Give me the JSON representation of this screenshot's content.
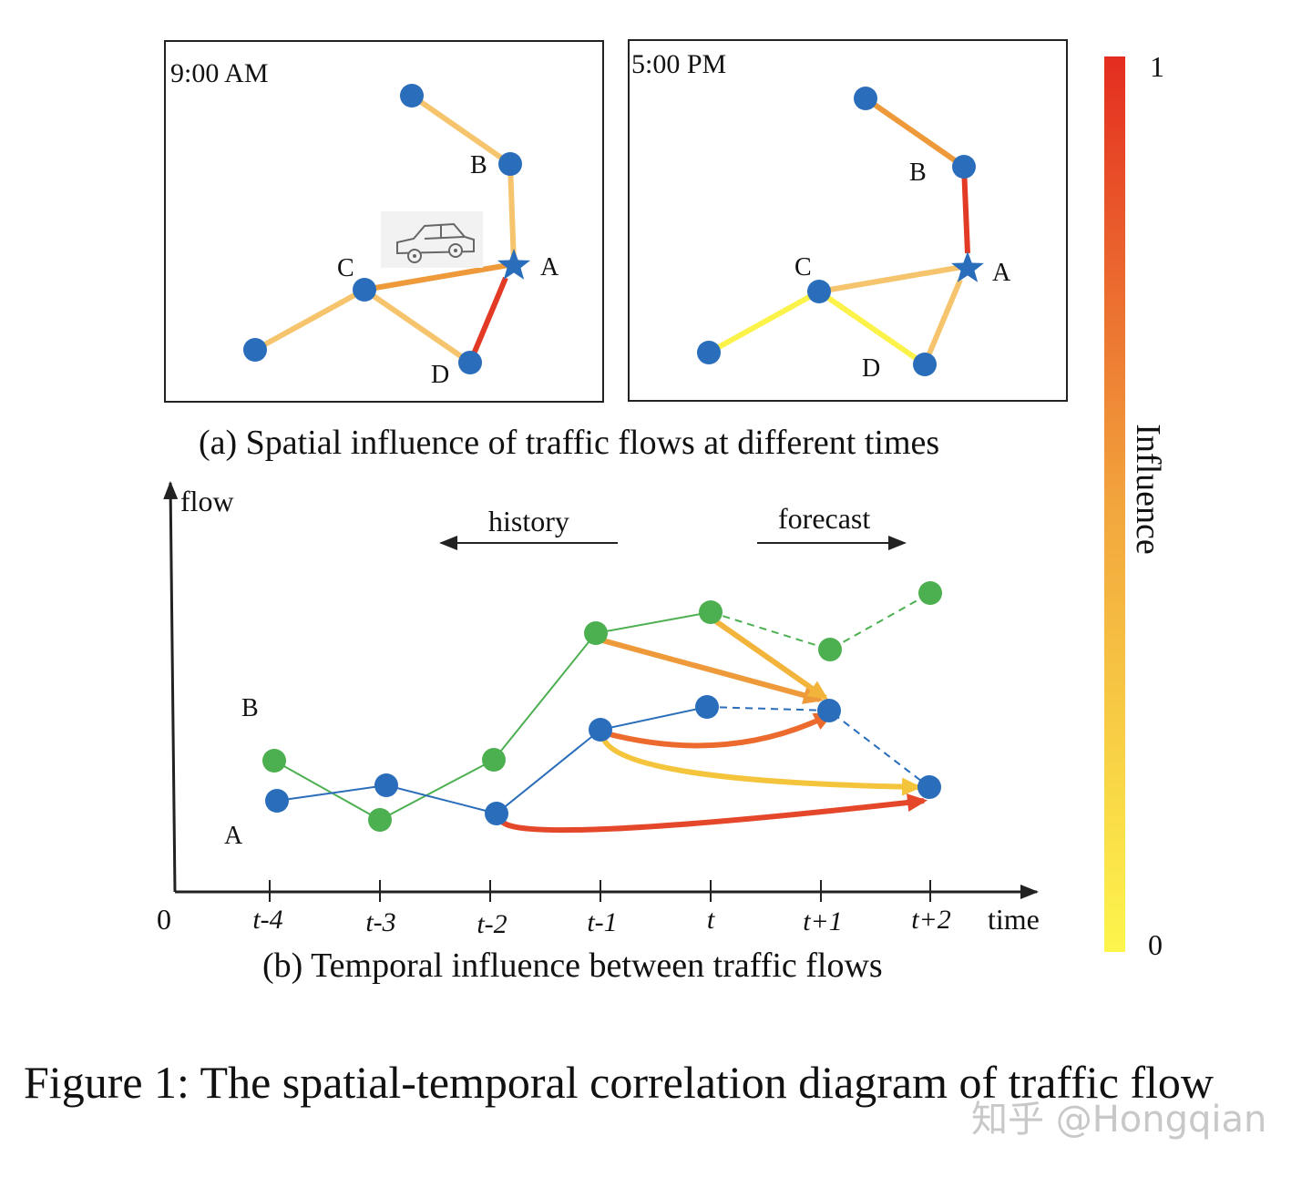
{
  "panel_a": {
    "time_left": "9:00 AM",
    "time_right": "5:00 PM",
    "node_labels": {
      "A": "A",
      "B": "B",
      "C": "C",
      "D": "D"
    },
    "caption": "(a) Spatial influence of traffic flows  at different times"
  },
  "panel_b": {
    "y_axis_label": "flow",
    "x_axis_label": "time",
    "origin": "0",
    "ticks": [
      "t-4",
      "t-3",
      "t-2",
      "t-1",
      "t",
      "t+1",
      "t+2"
    ],
    "history": "history",
    "forecast": "forecast",
    "series_label_B": "B",
    "series_label_A": "A",
    "caption": "(b) Temporal influence between traffic flows"
  },
  "colorbar": {
    "title": "Influence",
    "max": "1",
    "min": "0"
  },
  "colors": {
    "node_blue": "#2a6dbb",
    "node_green": "#4caf50",
    "line_blue": "#2a6dbb",
    "line_green": "#4caf50",
    "high": "#e33a25",
    "mid": "#ee9a3a",
    "low": "#f6c46c",
    "lowest": "#fbf24a"
  },
  "figure_caption": "Figure 1: The spatial-temporal correlation diagram of traffic flow",
  "watermark": "知乎 @Hongqian"
}
